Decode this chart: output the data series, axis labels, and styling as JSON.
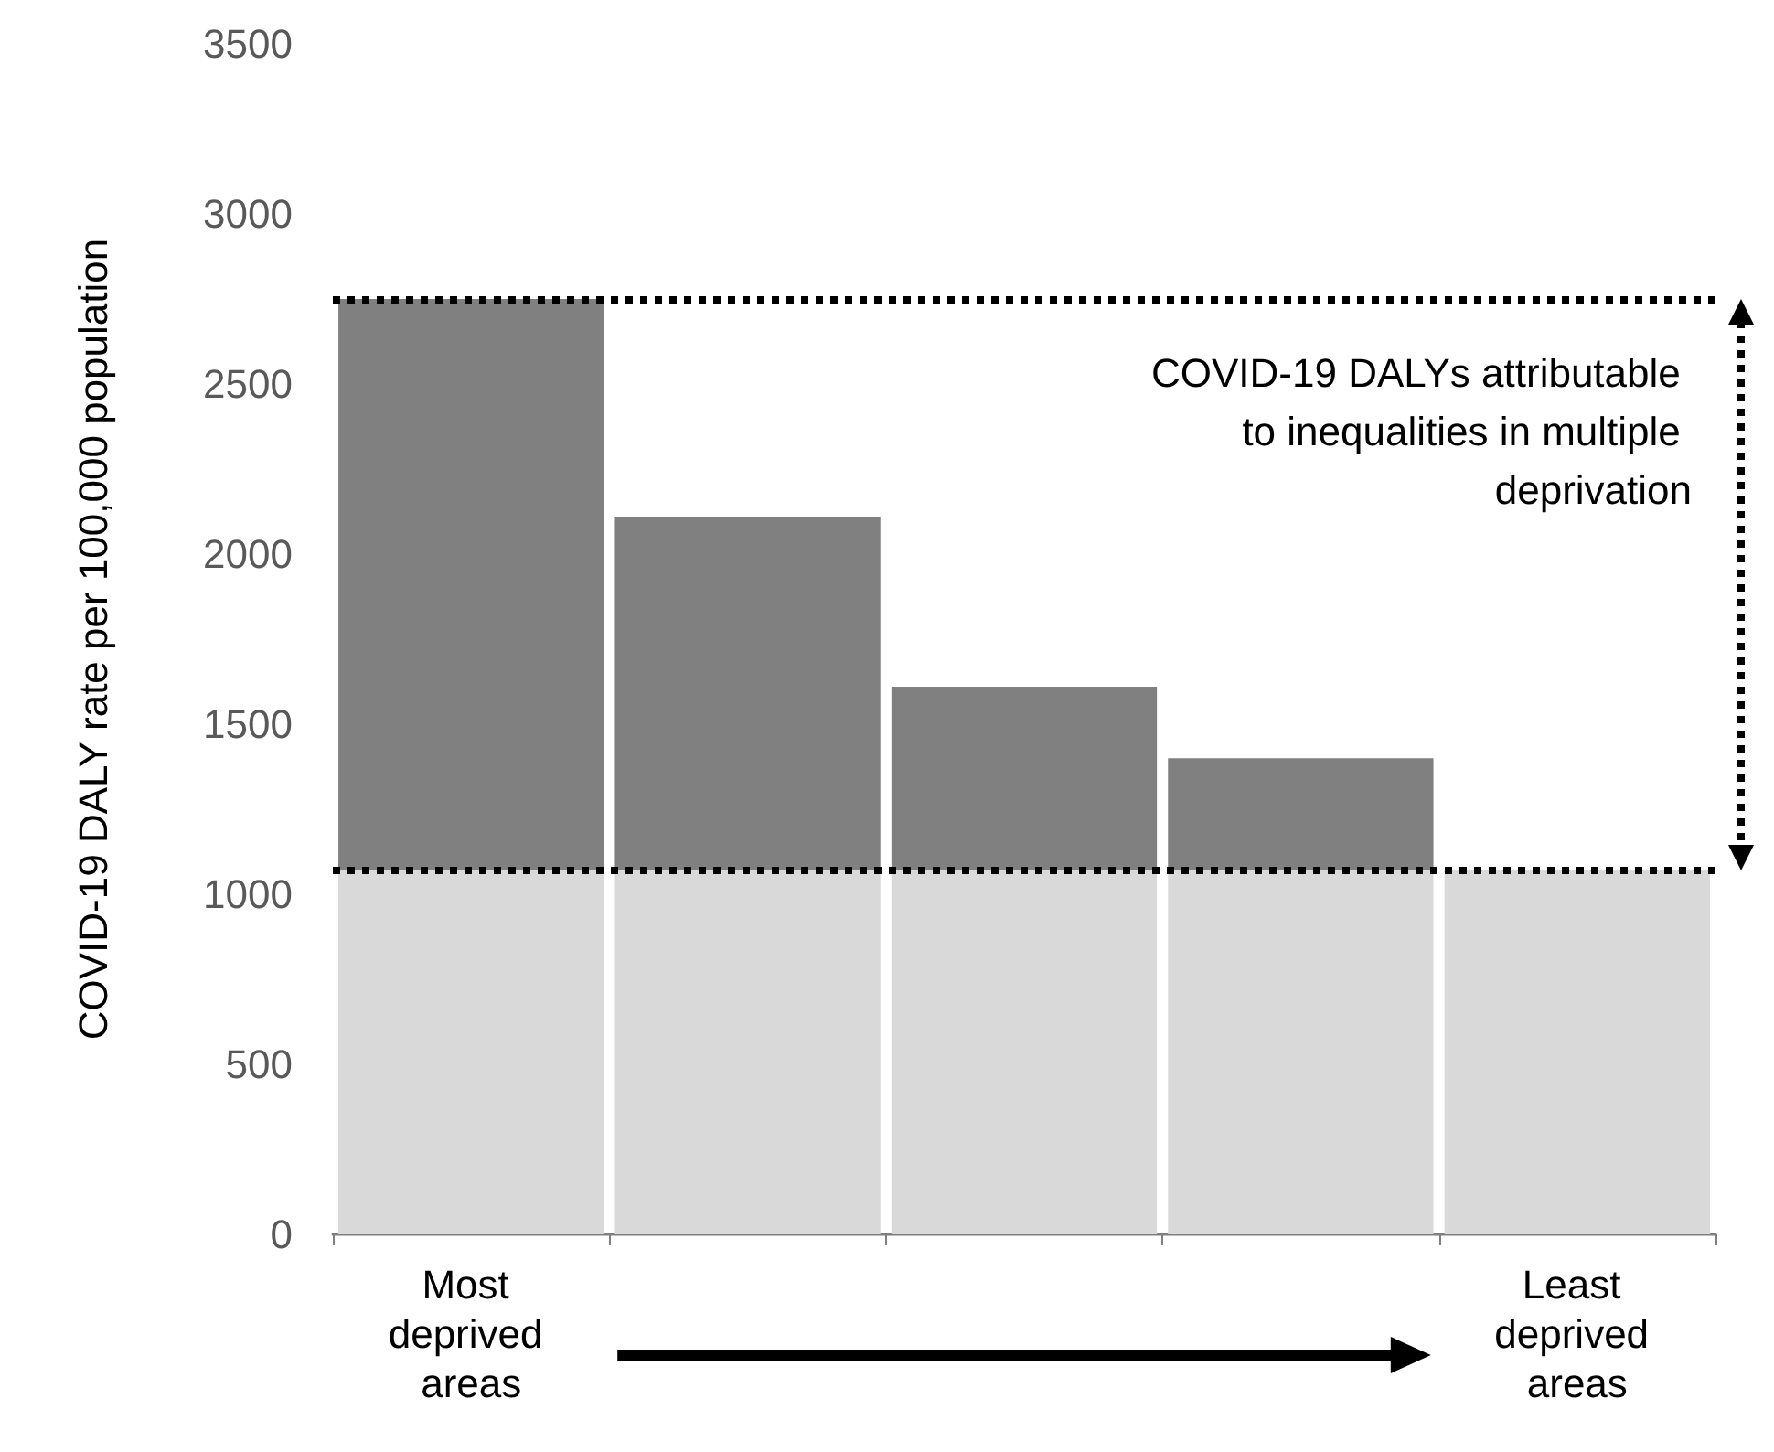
{
  "chart_data": {
    "type": "bar",
    "stacked": true,
    "ylabel": "COVID-19 DALY rate per 100,000 population",
    "categories": [
      "Most deprived areas",
      null,
      null,
      null,
      "Least deprived areas"
    ],
    "series": [
      {
        "color": "#d9d9d9",
        "values": [
          1070,
          1070,
          1070,
          1070,
          1070
        ]
      },
      {
        "color": "#808080",
        "values": [
          1680,
          1040,
          540,
          330,
          0
        ]
      }
    ],
    "ylim": [
      0,
      3500
    ],
    "yticks": [
      0,
      500,
      1000,
      1500,
      2000,
      2500,
      3000,
      3500
    ],
    "grid": false,
    "ref_lines": [
      {
        "axis": "y",
        "value": 2750,
        "line_style": "dotted",
        "color": "#000000"
      },
      {
        "axis": "y",
        "value": 1070,
        "line_style": "dotted",
        "color": "#000000"
      }
    ],
    "annotations": [
      "COVID-19 DALYs attributable to inequalities in multiple deprivation"
    ]
  }
}
